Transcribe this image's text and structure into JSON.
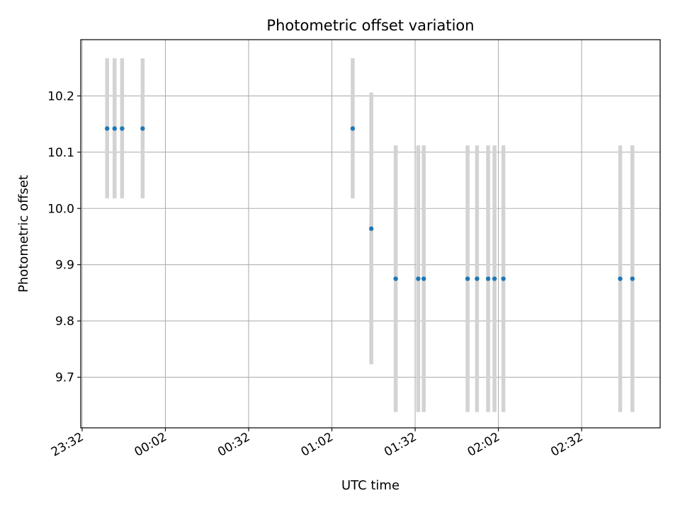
{
  "chart_data": {
    "type": "scatter",
    "title": "Photometric offset variation",
    "xlabel": "UTC time",
    "ylabel": "Photometric offset",
    "x_tick_labels": [
      "23:32",
      "00:02",
      "00:32",
      "01:02",
      "01:32",
      "02:02",
      "02:32"
    ],
    "x_tick_minutes": [
      0,
      30,
      60,
      90,
      120,
      150,
      180
    ],
    "y_ticks": [
      9.7,
      9.8,
      9.9,
      10.0,
      10.1,
      10.2
    ],
    "y_tick_labels": [
      "9.7",
      "9.8",
      "9.9",
      "10.0",
      "10.1",
      "10.2"
    ],
    "xlim_minutes": [
      -0.5,
      208.3
    ],
    "ylim": [
      9.61,
      10.3
    ],
    "grid": true,
    "colors": {
      "point": "#1f77b4",
      "errorbar": "#d3d3d3",
      "grid": "#b0b0b0"
    },
    "points": [
      {
        "t": 9.0,
        "y": 10.142,
        "lo": 10.018,
        "hi": 10.267
      },
      {
        "t": 11.7,
        "y": 10.142,
        "lo": 10.018,
        "hi": 10.267
      },
      {
        "t": 14.4,
        "y": 10.142,
        "lo": 10.018,
        "hi": 10.267
      },
      {
        "t": 21.8,
        "y": 10.142,
        "lo": 10.018,
        "hi": 10.267
      },
      {
        "t": 97.5,
        "y": 10.142,
        "lo": 10.018,
        "hi": 10.267
      },
      {
        "t": 104.2,
        "y": 9.964,
        "lo": 9.723,
        "hi": 10.206
      },
      {
        "t": 113.0,
        "y": 9.875,
        "lo": 9.638,
        "hi": 10.112
      },
      {
        "t": 121.1,
        "y": 9.875,
        "lo": 9.638,
        "hi": 10.112
      },
      {
        "t": 123.1,
        "y": 9.875,
        "lo": 9.638,
        "hi": 10.112
      },
      {
        "t": 138.9,
        "y": 9.875,
        "lo": 9.638,
        "hi": 10.112
      },
      {
        "t": 142.3,
        "y": 9.875,
        "lo": 9.638,
        "hi": 10.112
      },
      {
        "t": 146.3,
        "y": 9.875,
        "lo": 9.638,
        "hi": 10.112
      },
      {
        "t": 148.6,
        "y": 9.875,
        "lo": 9.638,
        "hi": 10.112
      },
      {
        "t": 151.8,
        "y": 9.875,
        "lo": 9.638,
        "hi": 10.112
      },
      {
        "t": 193.9,
        "y": 9.875,
        "lo": 9.638,
        "hi": 10.112
      },
      {
        "t": 198.3,
        "y": 9.875,
        "lo": 9.638,
        "hi": 10.112
      }
    ]
  }
}
